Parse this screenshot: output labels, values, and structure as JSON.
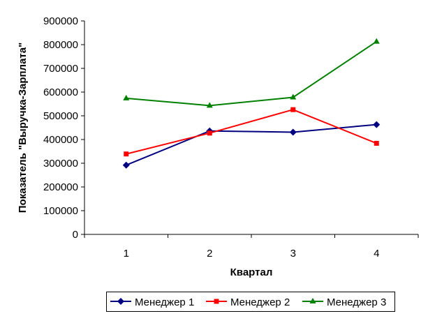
{
  "chart_data": {
    "type": "line",
    "title": "",
    "xlabel": "Квартал",
    "ylabel": "Показатель \"Выручка-Зарплата\"",
    "categories": [
      "1",
      "2",
      "3",
      "4"
    ],
    "ylim": [
      0,
      900000
    ],
    "yticks": [
      0,
      100000,
      200000,
      300000,
      400000,
      500000,
      600000,
      700000,
      800000,
      900000
    ],
    "grid": false,
    "legend": "bottom",
    "series": [
      {
        "name": "Менеджер 1",
        "color": "#000080",
        "marker": "diamond",
        "values": [
          292000,
          436000,
          431000,
          463000
        ]
      },
      {
        "name": "Менеджер 2",
        "color": "#FF0000",
        "marker": "square",
        "values": [
          339000,
          427000,
          526000,
          384000
        ]
      },
      {
        "name": "Менеджер 3",
        "color": "#008000",
        "marker": "triangle",
        "values": [
          574000,
          543000,
          578000,
          813000
        ]
      }
    ]
  }
}
